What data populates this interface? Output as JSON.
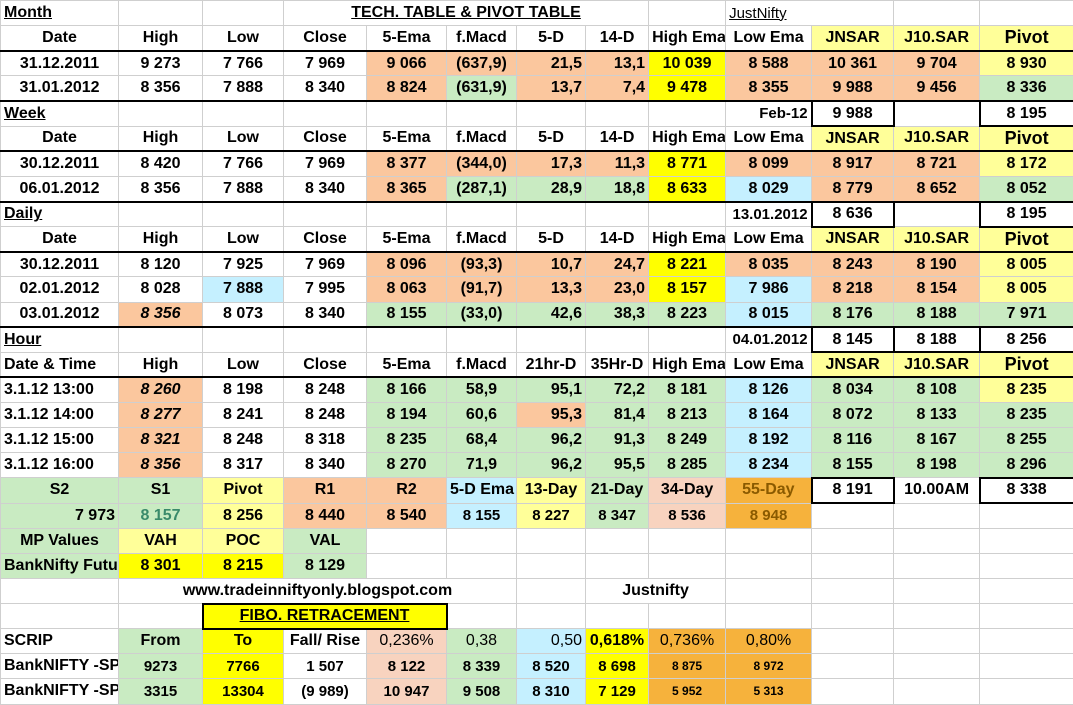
{
  "title": {
    "month": "Month",
    "tech_table": "TECH. TABLE  &  PIVOT TABLE",
    "justnifty": "JustNifty"
  },
  "headers": {
    "date": "Date",
    "high": "High",
    "low": "Low",
    "close": "Close",
    "ema5": "5-Ema",
    "fmacd": "f.Macd",
    "d5": "5-D",
    "d14": "14-D",
    "high_ema": "High Ema",
    "low_ema": "Low Ema",
    "jnsar": "JNSAR",
    "j10sar": "J10.SAR",
    "pivot": "Pivot"
  },
  "month_rows": [
    {
      "date": "31.12.2011",
      "high": "9 273",
      "low": "7 766",
      "close": "7 969",
      "ema5": "9 066",
      "fmacd": "(637,9)",
      "d5": "21,5",
      "d14": "13,1",
      "high_ema": "10 039",
      "low_ema": "8 588",
      "jnsar": "10 361",
      "j10sar": "9 704",
      "pivot": "8 930"
    },
    {
      "date": "31.01.2012",
      "high": "8 356",
      "low": "7 888",
      "close": "8 340",
      "ema5": "8 824",
      "fmacd": "(631,9)",
      "d5": "13,7",
      "d14": "7,4",
      "high_ema": "9 478",
      "low_ema": "8 355",
      "jnsar": "9 988",
      "j10sar": "9 456",
      "pivot": "8 336"
    }
  ],
  "week": {
    "label": "Week",
    "period": "Feb-12",
    "sar_value": "9 988",
    "pivot_value": "8 195"
  },
  "week_rows": [
    {
      "date": "30.12.2011",
      "high": "8 420",
      "low": "7 766",
      "close": "7 969",
      "ema5": "8 377",
      "fmacd": "(344,0)",
      "d5": "17,3",
      "d14": "11,3",
      "high_ema": "8 771",
      "low_ema": "8 099",
      "jnsar": "8 917",
      "j10sar": "8 721",
      "pivot": "8 172"
    },
    {
      "date": "06.01.2012",
      "high": "8 356",
      "low": "7 888",
      "close": "8 340",
      "ema5": "8 365",
      "fmacd": "(287,1)",
      "d5": "28,9",
      "d14": "18,8",
      "high_ema": "8 633",
      "low_ema": "8 029",
      "jnsar": "8 779",
      "j10sar": "8 652",
      "pivot": "8 052"
    }
  ],
  "daily": {
    "label": "Daily",
    "period": "13.01.2012",
    "sar_value": "8 636",
    "pivot_value": "8 195"
  },
  "daily_rows": [
    {
      "date": "30.12.2011",
      "high": "8 120",
      "low": "7 925",
      "close": "7 969",
      "ema5": "8 096",
      "fmacd": "(93,3)",
      "d5": "10,7",
      "d14": "24,7",
      "high_ema": "8 221",
      "low_ema": "8 035",
      "jnsar": "8 243",
      "j10sar": "8 190",
      "pivot": "8 005"
    },
    {
      "date": "02.01.2012",
      "high": "8 028",
      "low": "7 888",
      "close": "7 995",
      "ema5": "8 063",
      "fmacd": "(91,7)",
      "d5": "13,3",
      "d14": "23,0",
      "high_ema": "8 157",
      "low_ema": "7 986",
      "jnsar": "8 218",
      "j10sar": "8 154",
      "pivot": "8 005"
    },
    {
      "date": "03.01.2012",
      "high": "8 356",
      "low": "8 073",
      "close": "8 340",
      "ema5": "8 155",
      "fmacd": "(33,0)",
      "d5": "42,6",
      "d14": "38,3",
      "high_ema": "8 223",
      "low_ema": "8 015",
      "jnsar": "8 176",
      "j10sar": "8 188",
      "pivot": "7 971"
    }
  ],
  "hour": {
    "label": "Hour",
    "period": "04.01.2012",
    "jnsar": "8 145",
    "j10sar": "8 188",
    "pivot": "8 256",
    "headers": {
      "datetime": "Date & Time",
      "d21": "21hr-D",
      "d35": "35Hr-D"
    }
  },
  "hour_rows": [
    {
      "date": "3.1.12 13:00",
      "high": "8 260",
      "low": "8 198",
      "close": "8 248",
      "ema5": "8 166",
      "fmacd": "58,9",
      "d5": "95,1",
      "d14": "72,2",
      "high_ema": "8 181",
      "low_ema": "8 126",
      "jnsar": "8 034",
      "j10sar": "8 108",
      "pivot": "8 235"
    },
    {
      "date": "3.1.12 14:00",
      "high": "8 277",
      "low": "8 241",
      "close": "8 248",
      "ema5": "8 194",
      "fmacd": "60,6",
      "d5": "95,3",
      "d14": "81,4",
      "high_ema": "8 213",
      "low_ema": "8 164",
      "jnsar": "8 072",
      "j10sar": "8 133",
      "pivot": "8 235"
    },
    {
      "date": "3.1.12 15:00",
      "high": "8 321",
      "low": "8 248",
      "close": "8 318",
      "ema5": "8 235",
      "fmacd": "68,4",
      "d5": "96,2",
      "d14": "91,3",
      "high_ema": "8 249",
      "low_ema": "8 192",
      "jnsar": "8 116",
      "j10sar": "8 167",
      "pivot": "8 255"
    },
    {
      "date": "3.1.12 16:00",
      "high": "8 356",
      "low": "8 317",
      "close": "8 340",
      "ema5": "8 270",
      "fmacd": "71,9",
      "d5": "96,2",
      "d14": "95,5",
      "high_ema": "8 285",
      "low_ema": "8 234",
      "jnsar": "8 155",
      "j10sar": "8 198",
      "pivot": "8 296"
    }
  ],
  "levels": {
    "labels": [
      "S2",
      "S1",
      "Pivot",
      "R1",
      "R2",
      "5-D Ema",
      "13-Day",
      "21-Day",
      "34-Day",
      "55-Day"
    ],
    "values": [
      "7 973",
      "8 157",
      "8 256",
      "8 440",
      "8 540",
      "8 155",
      "8 227",
      "8 347",
      "8 536",
      "8 948"
    ],
    "sar_value": "8 191",
    "time": "10.00AM",
    "pivot_value": "8 338"
  },
  "mp": {
    "label": "MP Values",
    "row_label": "BankNifty Future",
    "vah_label": "VAH",
    "poc_label": "POC",
    "val_label": "VAL",
    "vah": "8 301",
    "poc": "8 215",
    "val": "8 129"
  },
  "footer": {
    "url": "www.tradeinniftyonly.blogspot.com",
    "brand": "Justnifty"
  },
  "fibo": {
    "title": "FIBO. RETRACEMENT",
    "headers": [
      "SCRIP",
      "From",
      "To",
      "Fall/ Rise",
      "0,236%",
      "0,38",
      "0,50",
      "0,618%",
      "0,736%",
      "0,80%"
    ],
    "rows": [
      [
        "BankNIFTY -SPOT",
        "9273",
        "7766",
        "1 507",
        "8 122",
        "8 339",
        "8 520",
        "8 698",
        "8 875",
        "8 972"
      ],
      [
        "BankNIFTY -SPOT",
        "3315",
        "13304",
        "(9 989)",
        "10 947",
        "9 508",
        "8 310",
        "7 129",
        "5 952",
        "5 313"
      ]
    ]
  },
  "colors": {
    "section_blue": "#1f1fa3",
    "salmon": "#fbc79e",
    "green_fill": "#c9ebc2",
    "yellow_fill": "#ffff99",
    "amber": "#f6b23c"
  }
}
